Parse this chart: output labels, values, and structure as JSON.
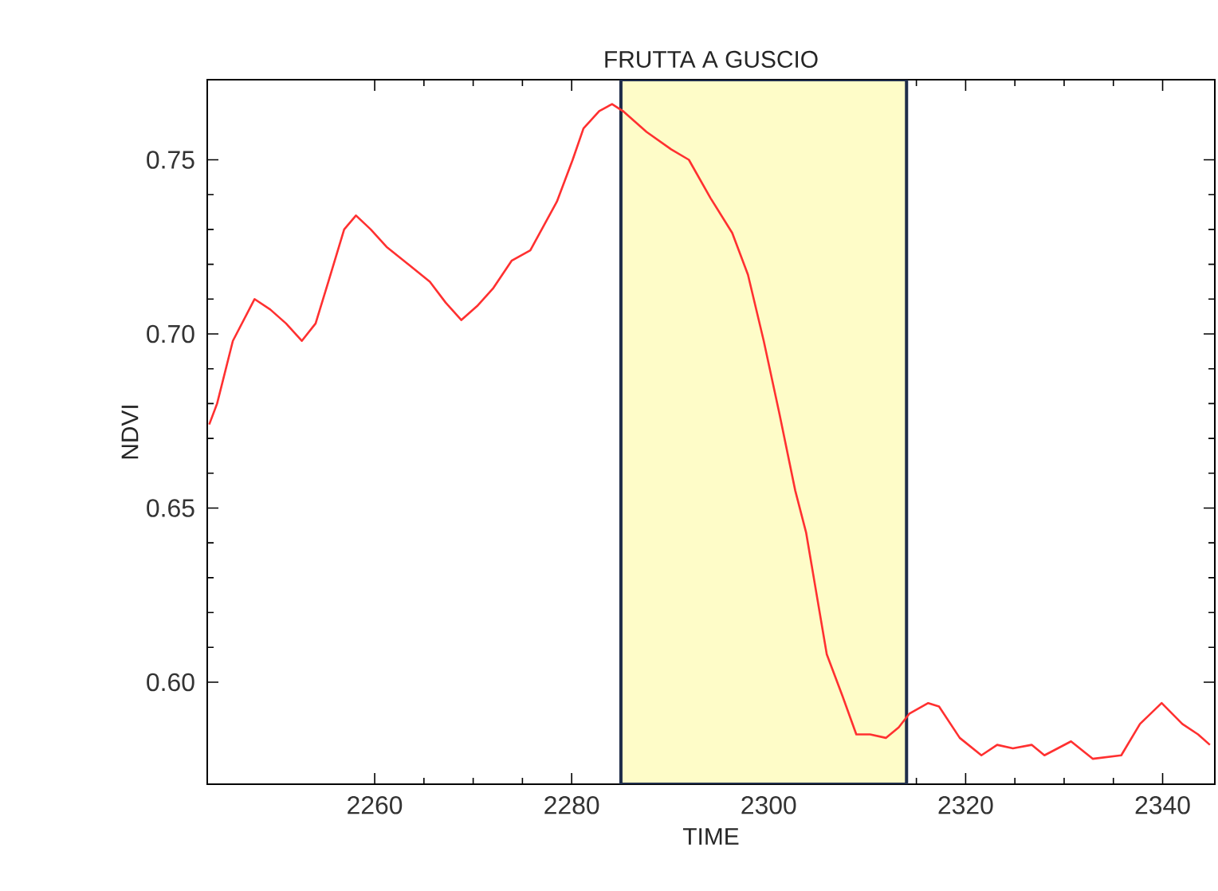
{
  "chart_data": {
    "type": "line",
    "title": "FRUTTA A GUSCIO",
    "xlabel": "TIME",
    "ylabel": "NDVI",
    "xlim": [
      2243,
      2345.3
    ],
    "ylim": [
      0.5707,
      0.773
    ],
    "xticks": [
      2260,
      2280,
      2300,
      2320,
      2340
    ],
    "yticks": [
      {
        "value": 0.6,
        "label": "0.60"
      },
      0.65,
      {
        "value": 0.7,
        "label": "0.70"
      },
      0.75
    ],
    "grid": false,
    "marker": "none",
    "line_style": "solid",
    "bands": [
      {
        "axis": "x",
        "from": 2285,
        "to": 2314,
        "color": "#fefcc8"
      }
    ],
    "series": [
      {
        "color": "#ff3030",
        "x": [
          2243.2,
          2244.0,
          2245.6,
          2247.8,
          2249.4,
          2251.0,
          2252.6,
          2254.0,
          2255.3,
          2256.9,
          2258.1,
          2259.6,
          2261.2,
          2263.4,
          2265.6,
          2267.2,
          2268.8,
          2270.4,
          2272.0,
          2273.9,
          2275.8,
          2278.5,
          2280.1,
          2281.2,
          2282.8,
          2284.1,
          2285.2,
          2287.6,
          2290.1,
          2291.9,
          2294.1,
          2296.3,
          2297.9,
          2299.5,
          2301.1,
          2302.7,
          2303.8,
          2305.9,
          2307.5,
          2308.9,
          2310.3,
          2311.9,
          2313.2,
          2314.3,
          2316.2,
          2317.3,
          2319.4,
          2321.6,
          2323.2,
          2324.8,
          2326.7,
          2328.0,
          2330.7,
          2332.9,
          2335.8,
          2337.7,
          2339.9,
          2342.0,
          2343.6,
          2344.8
        ],
        "values": [
          0.674,
          0.68,
          0.698,
          0.71,
          0.707,
          0.703,
          0.698,
          0.703,
          0.715,
          0.73,
          0.734,
          0.73,
          0.725,
          0.72,
          0.715,
          0.709,
          0.704,
          0.708,
          0.713,
          0.721,
          0.724,
          0.738,
          0.75,
          0.759,
          0.764,
          0.766,
          0.764,
          0.758,
          0.753,
          0.75,
          0.739,
          0.729,
          0.717,
          0.698,
          0.677,
          0.655,
          0.643,
          0.608,
          0.596,
          0.585,
          0.585,
          0.584,
          0.587,
          0.591,
          0.594,
          0.593,
          0.584,
          0.579,
          0.582,
          0.581,
          0.582,
          0.579,
          0.583,
          0.578,
          0.579,
          0.588,
          0.594,
          0.588,
          0.585,
          0.582
        ]
      }
    ]
  }
}
